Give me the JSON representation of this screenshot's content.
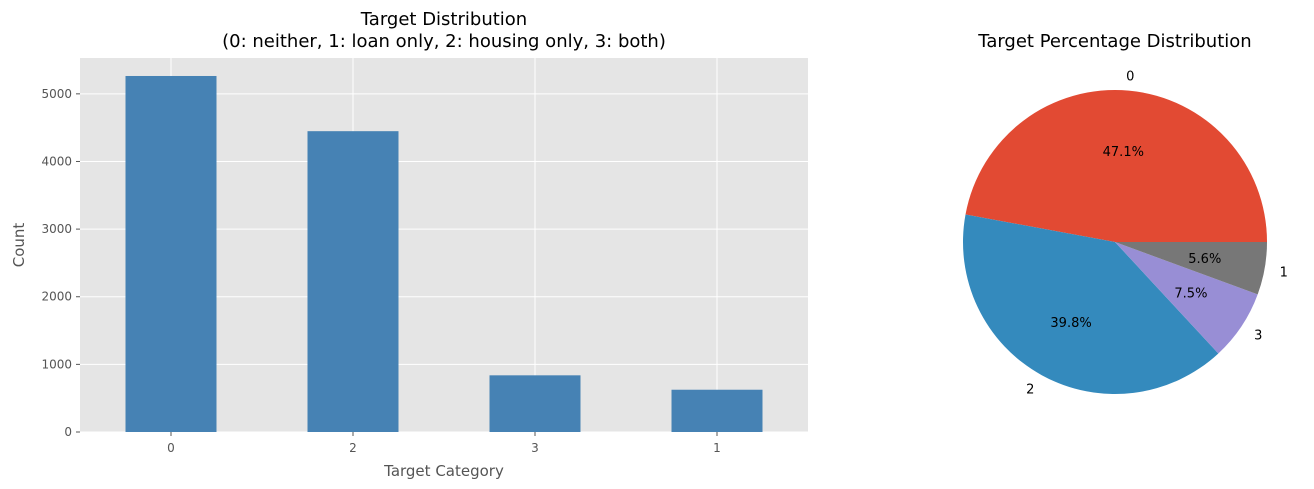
{
  "chart_data": [
    {
      "type": "bar",
      "title_line1": "Target Distribution",
      "title_line2": "(0: neither, 1: loan only, 2: housing only, 3: both)",
      "xlabel": "Target Category",
      "ylabel": "Count",
      "categories": [
        "0",
        "2",
        "3",
        "1"
      ],
      "values": [
        5264,
        4448,
        838,
        625
      ],
      "ylim": [
        0,
        5530
      ],
      "yticks": [
        0,
        1000,
        2000,
        3000,
        4000,
        5000
      ],
      "grid": true,
      "bar_color": "#4682b4",
      "background_color": "#e5e5e5"
    },
    {
      "type": "pie",
      "title": "Target Percentage Distribution",
      "labels": [
        "0",
        "2",
        "3",
        "1"
      ],
      "values": [
        47.1,
        39.8,
        7.5,
        5.6
      ],
      "pct_labels": [
        "47.1%",
        "39.8%",
        "7.5%",
        "5.6%"
      ],
      "colors": [
        "#e24a33",
        "#348abd",
        "#988ed5",
        "#777777"
      ]
    }
  ]
}
